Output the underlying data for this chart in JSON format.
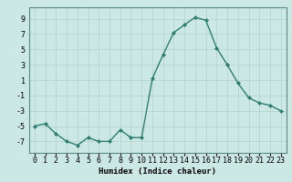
{
  "x": [
    0,
    1,
    2,
    3,
    4,
    5,
    6,
    7,
    8,
    9,
    10,
    11,
    12,
    13,
    14,
    15,
    16,
    17,
    18,
    19,
    20,
    21,
    22,
    23
  ],
  "y": [
    -5,
    -4.7,
    -6,
    -7,
    -7.5,
    -6.5,
    -7,
    -7,
    -5.5,
    -6.5,
    -6.5,
    1.2,
    4.3,
    7.2,
    8.2,
    9.2,
    8.8,
    5.2,
    3.0,
    0.6,
    -1.3,
    -2.0,
    -2.3,
    -3.0
  ],
  "line_color": "#2e7d6e",
  "marker": "D",
  "marker_size": 2.0,
  "linewidth": 1.0,
  "bg_color": "#cce8e4",
  "grid_color": "#b8d4d0",
  "xlabel": "Humidex (Indice chaleur)",
  "xlim": [
    -0.5,
    23.5
  ],
  "ylim": [
    -8.5,
    10.5
  ],
  "yticks": [
    -7,
    -5,
    -3,
    -1,
    1,
    3,
    5,
    7,
    9
  ],
  "xticks": [
    0,
    1,
    2,
    3,
    4,
    5,
    6,
    7,
    8,
    9,
    10,
    11,
    12,
    13,
    14,
    15,
    16,
    17,
    18,
    19,
    20,
    21,
    22,
    23
  ],
  "xlabel_fontsize": 6.5,
  "tick_fontsize": 6.0
}
